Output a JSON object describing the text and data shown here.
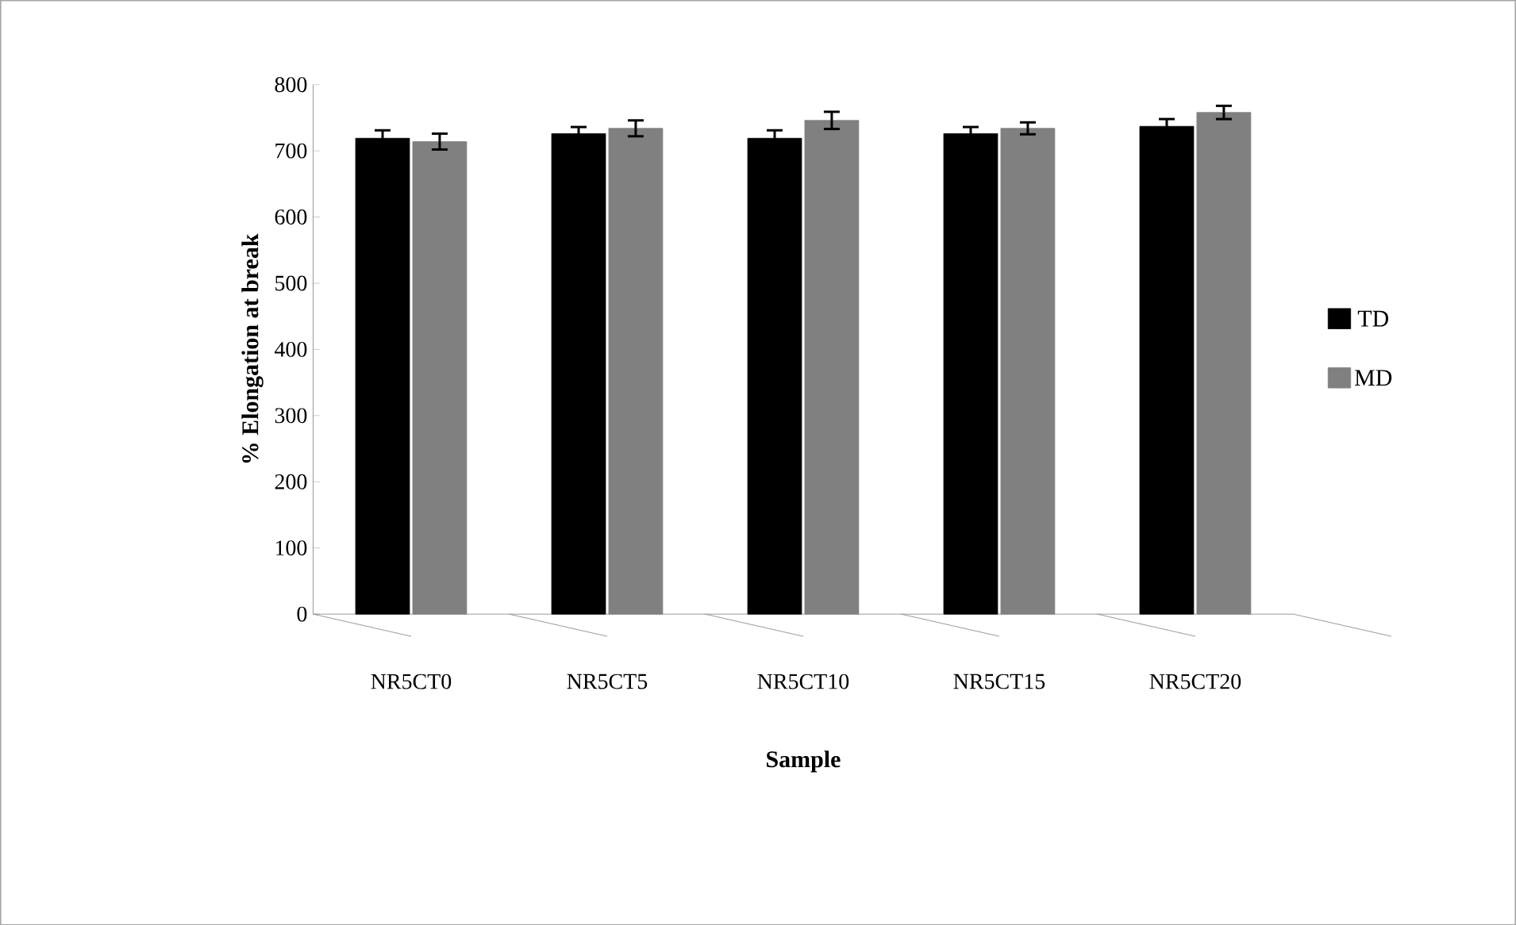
{
  "chart_data": {
    "type": "bar",
    "xlabel": "Sample",
    "ylabel": "% Elongation at break",
    "categories": [
      "NR5CT0",
      "NR5CT5",
      "NR5CT10",
      "NR5CT15",
      "NR5CT20"
    ],
    "series": [
      {
        "name": "TD",
        "color": "#000000",
        "values": [
          719,
          726,
          719,
          726,
          737
        ],
        "errors": [
          12,
          10,
          12,
          10,
          11
        ]
      },
      {
        "name": "MD",
        "color": "#808080",
        "values": [
          714,
          734,
          746,
          734,
          758
        ],
        "errors": [
          12,
          12,
          13,
          9,
          10
        ]
      }
    ],
    "ylim": [
      0,
      800
    ],
    "yticks": [
      0,
      100,
      200,
      300,
      400,
      500,
      600,
      700,
      800
    ],
    "grid": false,
    "legend": "right"
  }
}
